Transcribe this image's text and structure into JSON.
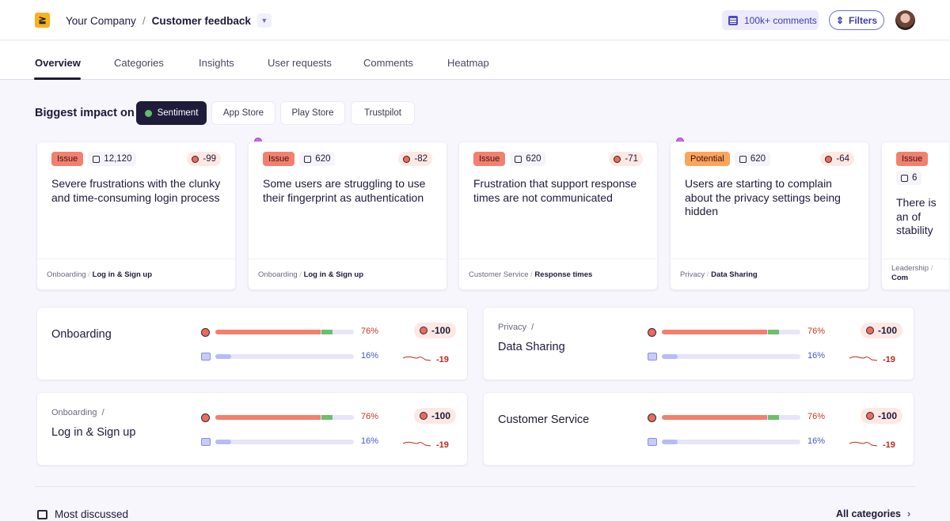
{
  "header": {
    "logo": "≧",
    "company": "Your Company",
    "separator": "/",
    "project": "Customer feedback",
    "comments_count": "100k+ comments",
    "filters_label": "Filters"
  },
  "tabs": [
    "Overview",
    "Categories",
    "Insights",
    "User requests",
    "Comments",
    "Heatmap"
  ],
  "active_tab": "Overview",
  "impact": {
    "label": "Biggest impact on",
    "sources": [
      "Sentiment",
      "App Store",
      "Play Store",
      "Trustpilot"
    ],
    "selected": "Sentiment"
  },
  "insights": [
    {
      "type": "Issue",
      "count": "12,120",
      "score": "-99",
      "title": "Severe frustrations with the clunky and time-consuming login process",
      "parent": "Onboarding",
      "category": "Log in & Sign up",
      "new": false
    },
    {
      "type": "Issue",
      "count": "620",
      "score": "-82",
      "title": "Some users are struggling to use their fingerprint as authentication",
      "parent": "Onboarding",
      "category": "Log in & Sign up",
      "new": true
    },
    {
      "type": "Issue",
      "count": "620",
      "score": "-71",
      "title": "Frustration that support response times are not communicated",
      "parent": "Customer Service",
      "category": "Response times",
      "new": false
    },
    {
      "type": "Potential",
      "count": "620",
      "score": "-64",
      "title": "Users are starting to complain about the privacy settings being hidden",
      "parent": "Privacy",
      "category": "Data Sharing",
      "new": true
    },
    {
      "type": "Issue",
      "count": "6",
      "score": "",
      "title": "There is an of stability",
      "parent": "Leadership",
      "category": "Com",
      "new": false
    }
  ],
  "categories": [
    {
      "parent": "",
      "name": "Onboarding",
      "negative_pct": 76,
      "positive_pct": 8,
      "negative_label": "76%",
      "comments_pct": 16,
      "comments_label": "16%",
      "score": "-100",
      "delta": "-19"
    },
    {
      "parent": "Privacy",
      "name": "Data Sharing",
      "negative_pct": 76,
      "positive_pct": 8,
      "negative_label": "76%",
      "comments_pct": 16,
      "comments_label": "16%",
      "score": "-100",
      "delta": "-19"
    },
    {
      "parent": "Onboarding",
      "name": "Log in & Sign up",
      "negative_pct": 76,
      "positive_pct": 8,
      "negative_label": "76%",
      "comments_pct": 16,
      "comments_label": "16%",
      "score": "-100",
      "delta": "-19"
    },
    {
      "parent": "",
      "name": "Customer Service",
      "negative_pct": 76,
      "positive_pct": 8,
      "negative_label": "76%",
      "comments_pct": 16,
      "comments_label": "16%",
      "score": "-100",
      "delta": "-19"
    }
  ],
  "most_discussed": {
    "title": "Most discussed",
    "link": "All categories"
  },
  "colors": {
    "negative": "#f2806f",
    "positive": "#6cbf6c",
    "comments": "#b8bbf5",
    "issue": "#f2806f",
    "potential": "#fba55a",
    "accent": "#4a55e0"
  }
}
